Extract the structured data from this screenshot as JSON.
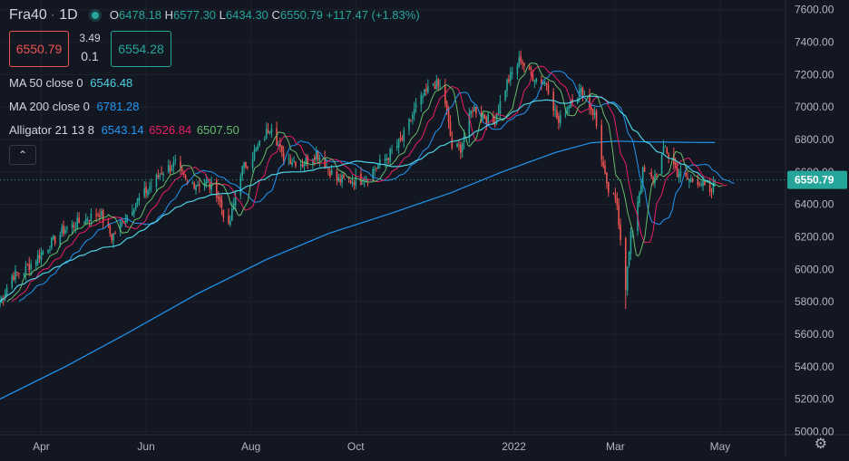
{
  "symbol": "Fra40",
  "interval": "1D",
  "ohlc": {
    "open_label": "O",
    "open": "6478.18",
    "high_label": "H",
    "high": "6577.30",
    "low_label": "L",
    "low": "6434.30",
    "close_label": "C",
    "close": "6550.79",
    "change": "+117.47 (+1.83%)"
  },
  "bid": "6550.79",
  "spread_top": "3.49",
  "spread_bottom": "0.1",
  "ask": "6554.28",
  "indicators": {
    "ma50": {
      "label": "MA 50 close 0",
      "value": "6546.48",
      "color": "#4dd0e1"
    },
    "ma200": {
      "label": "MA 200 close 0",
      "value": "6781.28",
      "color": "#2196f3"
    },
    "alligator": {
      "label": "Alligator 21 13 8",
      "jaw": "6543.14",
      "jaw_color": "#2196f3",
      "teeth": "6526.84",
      "teeth_color": "#e91e63",
      "lips": "6507.50",
      "lips_color": "#66bb6a"
    }
  },
  "collapse_glyph": "⌃",
  "settings_glyph": "⚙",
  "colors": {
    "background": "#131722",
    "up": "#26a69a",
    "down": "#ef5350",
    "ma50": "#4dd0e1",
    "ma200": "#2196f3",
    "jaw": "#2196f3",
    "teeth": "#e91e63",
    "lips": "#66bb6a",
    "last_price_line": "#26a69a"
  },
  "chart_data": {
    "type": "candlestick",
    "y_axis_ticks": [
      5000,
      5200,
      5400,
      5600,
      5800,
      6000,
      6200,
      6400,
      6600,
      6800,
      7000,
      7200,
      7400,
      7600
    ],
    "y_axis_tick_labels": [
      "5000.00",
      "5200.00",
      "5400.00",
      "5600.00",
      "5800.00",
      "6000.00",
      "6200.00",
      "6400.00",
      "6600.00",
      "6800.00",
      "7000.00",
      "7200.00",
      "7400.00",
      "7600.00"
    ],
    "ylim": [
      4980,
      7660
    ],
    "x_axis_labels": [
      "Apr",
      "Jun",
      "Aug",
      "Oct",
      "2022",
      "Mar",
      "May"
    ],
    "x_axis_label_dates": [
      "2021-04-01",
      "2021-06-01",
      "2021-08-01",
      "2021-10-01",
      "2022-01-01",
      "2022-03-01",
      "2022-05-01"
    ],
    "x_range": [
      "2021-03-08",
      "2022-06-08"
    ],
    "last_price": 6550.79,
    "last_price_label": "6550.79",
    "close_path": [
      [
        "2021-03-08",
        5800
      ],
      [
        "2021-03-15",
        5960
      ],
      [
        "2021-03-22",
        5990
      ],
      [
        "2021-04-01",
        6100
      ],
      [
        "2021-04-15",
        6250
      ],
      [
        "2021-04-25",
        6300
      ],
      [
        "2021-05-05",
        6350
      ],
      [
        "2021-05-12",
        6200
      ],
      [
        "2021-05-25",
        6400
      ],
      [
        "2021-06-01",
        6480
      ],
      [
        "2021-06-10",
        6600
      ],
      [
        "2021-06-18",
        6650
      ],
      [
        "2021-06-25",
        6520
      ],
      [
        "2021-07-05",
        6540
      ],
      [
        "2021-07-12",
        6480
      ],
      [
        "2021-07-19",
        6250
      ],
      [
        "2021-07-26",
        6600
      ],
      [
        "2021-08-05",
        6750
      ],
      [
        "2021-08-13",
        6900
      ],
      [
        "2021-08-19",
        6700
      ],
      [
        "2021-08-31",
        6650
      ],
      [
        "2021-09-08",
        6720
      ],
      [
        "2021-09-20",
        6550
      ],
      [
        "2021-09-29",
        6550
      ],
      [
        "2021-10-04",
        6550
      ],
      [
        "2021-10-10",
        6600
      ],
      [
        "2021-10-20",
        6700
      ],
      [
        "2021-10-28",
        6800
      ],
      [
        "2021-11-05",
        7000
      ],
      [
        "2021-11-15",
        7150
      ],
      [
        "2021-11-21",
        7100
      ],
      [
        "2021-11-26",
        6750
      ],
      [
        "2021-12-01",
        6750
      ],
      [
        "2021-12-08",
        7000
      ],
      [
        "2021-12-20",
        6900
      ],
      [
        "2021-12-28",
        7150
      ],
      [
        "2022-01-05",
        7300
      ],
      [
        "2022-01-10",
        7200
      ],
      [
        "2022-01-20",
        7150
      ],
      [
        "2022-01-27",
        6900
      ],
      [
        "2022-02-03",
        7050
      ],
      [
        "2022-02-10",
        7100
      ],
      [
        "2022-02-17",
        6950
      ],
      [
        "2022-02-24",
        6500
      ],
      [
        "2022-03-02",
        6400
      ],
      [
        "2022-03-07",
        5900
      ],
      [
        "2022-03-10",
        6200
      ],
      [
        "2022-03-17",
        6600
      ],
      [
        "2022-03-23",
        6550
      ],
      [
        "2022-03-30",
        6750
      ],
      [
        "2022-04-06",
        6600
      ],
      [
        "2022-04-12",
        6550
      ],
      [
        "2022-04-19",
        6550
      ],
      [
        "2022-04-25",
        6450
      ],
      [
        "2022-04-28",
        6550
      ]
    ],
    "ma200_path": [
      [
        "2021-03-08",
        5200
      ],
      [
        "2021-04-15",
        5400
      ],
      [
        "2021-05-20",
        5600
      ],
      [
        "2021-07-01",
        5850
      ],
      [
        "2021-08-10",
        6060
      ],
      [
        "2021-09-15",
        6220
      ],
      [
        "2021-10-20",
        6340
      ],
      [
        "2021-11-25",
        6470
      ],
      [
        "2021-12-25",
        6600
      ],
      [
        "2022-01-25",
        6720
      ],
      [
        "2022-02-15",
        6780
      ],
      [
        "2022-03-01",
        6790
      ],
      [
        "2022-03-20",
        6785
      ],
      [
        "2022-04-10",
        6783
      ],
      [
        "2022-04-28",
        6781
      ]
    ],
    "series": [
      {
        "name": "Fra40",
        "kind": "candles"
      },
      {
        "name": "MA 50",
        "value": 6546.48
      },
      {
        "name": "MA 200",
        "value": 6781.28
      },
      {
        "name": "Alligator jaw",
        "value": 6543.14
      },
      {
        "name": "Alligator teeth",
        "value": 6526.84
      },
      {
        "name": "Alligator lips",
        "value": 6507.5
      }
    ],
    "grid": true
  }
}
